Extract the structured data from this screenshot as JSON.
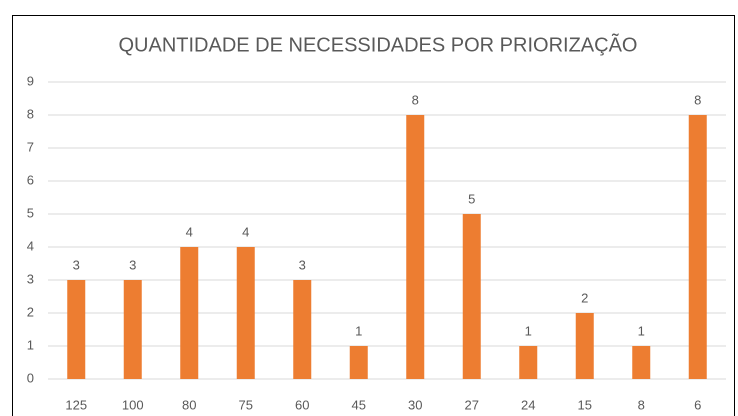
{
  "chart_data": {
    "type": "bar",
    "title": "QUANTIDADE DE NECESSIDADES POR PRIORIZAÇÃO",
    "categories": [
      "125",
      "100",
      "80",
      "75",
      "60",
      "45",
      "30",
      "27",
      "24",
      "15",
      "8",
      "6"
    ],
    "values": [
      3,
      3,
      4,
      4,
      3,
      1,
      8,
      5,
      1,
      2,
      1,
      8
    ],
    "color": "#ed7d31",
    "ylim": [
      0,
      9
    ],
    "yticks": [
      0,
      1,
      2,
      3,
      4,
      5,
      6,
      7,
      8,
      9
    ],
    "grid": true
  }
}
